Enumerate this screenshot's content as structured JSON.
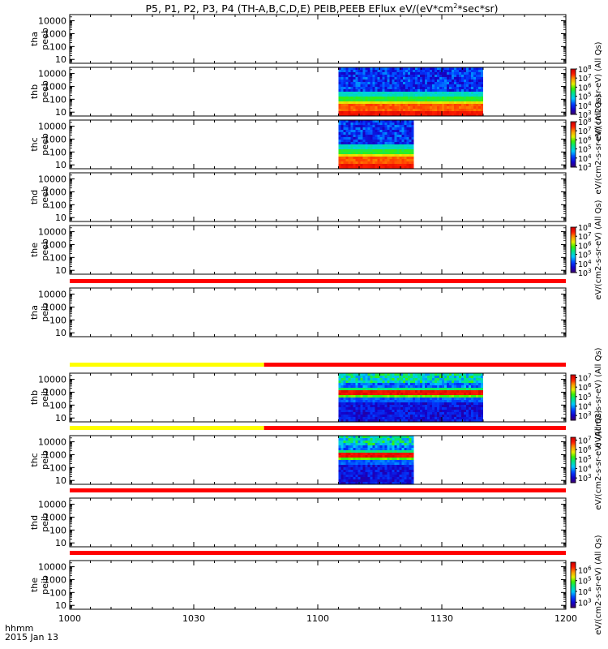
{
  "chart_data": {
    "type": "heatmap",
    "title": "P5, P1, P2, P3, P4 (TH-A,B,C,D,E) PEIB,PEEB EFlux eV/(eV*cm",
    "title_sup": "2",
    "title_tail": "*sec*sr)",
    "x_axis": {
      "range": [
        "1000",
        "1200"
      ],
      "tick_labels": [
        "1000",
        "1030",
        "1100",
        "1130",
        "1200"
      ],
      "tick_values_min": [
        0,
        30,
        60,
        90,
        120
      ],
      "range_min": [
        0,
        120
      ],
      "corner_label_1": "hhmm",
      "corner_label_2": "2015 Jan 13"
    },
    "y_axis": {
      "scale": "log",
      "range": [
        5,
        30000
      ],
      "tick_values": [
        10,
        100,
        1000,
        10000
      ],
      "tick_labels": [
        "10",
        "100",
        "1000",
        "10000"
      ]
    },
    "panels": [
      {
        "label_1": "tha",
        "label_2": "peeb",
        "has_data": false,
        "colorbar": null
      },
      {
        "label_1": "thb",
        "label_2": "peeb",
        "has_data": true,
        "data_intervals_min": [
          [
            65,
            80
          ],
          [
            80,
            100
          ]
        ],
        "profile": "electron",
        "colorbar": {
          "title": "eV/(cm2-s-sr-eV) (All Qs)",
          "exponent_range": [
            3,
            8
          ],
          "tick_labels": [
            "10",
            "10",
            "10",
            "10",
            "10",
            "10"
          ],
          "tick_exponents": [
            "3",
            "4",
            "5",
            "6",
            "7",
            "8"
          ]
        }
      },
      {
        "label_1": "thc",
        "label_2": "peeb",
        "has_data": true,
        "data_intervals_min": [
          [
            65,
            75
          ],
          [
            75,
            83
          ]
        ],
        "profile": "electron",
        "colorbar": {
          "title": "eV/(cm2-s-sr-eV) (All Qs)",
          "exponent_range": [
            3,
            8
          ],
          "tick_labels": [
            "10",
            "10",
            "10",
            "10",
            "10",
            "10"
          ],
          "tick_exponents": [
            "3",
            "4",
            "5",
            "6",
            "7",
            "8"
          ]
        }
      },
      {
        "label_1": "thd",
        "label_2": "peeb",
        "has_data": false,
        "colorbar": null
      },
      {
        "label_1": "the",
        "label_2": "peeb",
        "has_data": false,
        "colorbar": {
          "title": "eV/(cm2-s-sr-eV) (All Qs)",
          "exponent_range": [
            3,
            8
          ],
          "tick_labels": [
            "10",
            "10",
            "10",
            "10",
            "10",
            "10"
          ],
          "tick_exponents": [
            "3",
            "4",
            "5",
            "6",
            "7",
            "8"
          ]
        }
      },
      {
        "label_1": "tha",
        "label_2": "peib",
        "has_data": false,
        "bar_above": [
          {
            "from_min": 0,
            "to_min": 120,
            "color": "red"
          }
        ],
        "colorbar": null
      },
      {
        "label_1": "thb",
        "label_2": "peib",
        "has_data": true,
        "data_intervals_min": [
          [
            65,
            80
          ],
          [
            80,
            100
          ]
        ],
        "profile": "ion",
        "bar_above": [
          {
            "from_min": 0,
            "to_min": 47,
            "color": "yellow"
          },
          {
            "from_min": 47,
            "to_min": 120,
            "color": "red"
          }
        ],
        "colorbar": {
          "title": "eV/(cm2-s-sr-eV) (All Qs)",
          "exponent_range": [
            2.5,
            7.3
          ],
          "tick_labels": [
            "10",
            "10",
            "10",
            "10",
            "10"
          ],
          "tick_exponents": [
            "3",
            "4",
            "5",
            "6",
            "7"
          ]
        }
      },
      {
        "label_1": "thc",
        "label_2": "peib",
        "has_data": true,
        "data_intervals_min": [
          [
            65,
            75
          ],
          [
            75,
            83
          ]
        ],
        "profile": "ion",
        "bar_above": [
          {
            "from_min": 0,
            "to_min": 47,
            "color": "yellow"
          },
          {
            "from_min": 47,
            "to_min": 120,
            "color": "red"
          }
        ],
        "colorbar": {
          "title": "eV/(cm2-s-sr-eV) (All Qs)",
          "exponent_range": [
            2.5,
            7.3
          ],
          "tick_labels": [
            "10",
            "10",
            "10",
            "10",
            "10"
          ],
          "tick_exponents": [
            "3",
            "4",
            "5",
            "6",
            "7"
          ]
        }
      },
      {
        "label_1": "thd",
        "label_2": "peib",
        "has_data": false,
        "bar_above": [
          {
            "from_min": 0,
            "to_min": 120,
            "color": "red"
          }
        ],
        "colorbar": null
      },
      {
        "label_1": "the",
        "label_2": "peib",
        "has_data": false,
        "bar_above": [
          {
            "from_min": 0,
            "to_min": 120,
            "color": "red"
          }
        ],
        "colorbar": {
          "title": "eV/(cm2-s-sr-eV) (All Qs)",
          "exponent_range": [
            2.5,
            6.7
          ],
          "tick_labels": [
            "10",
            "10",
            "10",
            "10"
          ],
          "tick_exponents": [
            "3",
            "4",
            "5",
            "6"
          ]
        }
      }
    ]
  }
}
